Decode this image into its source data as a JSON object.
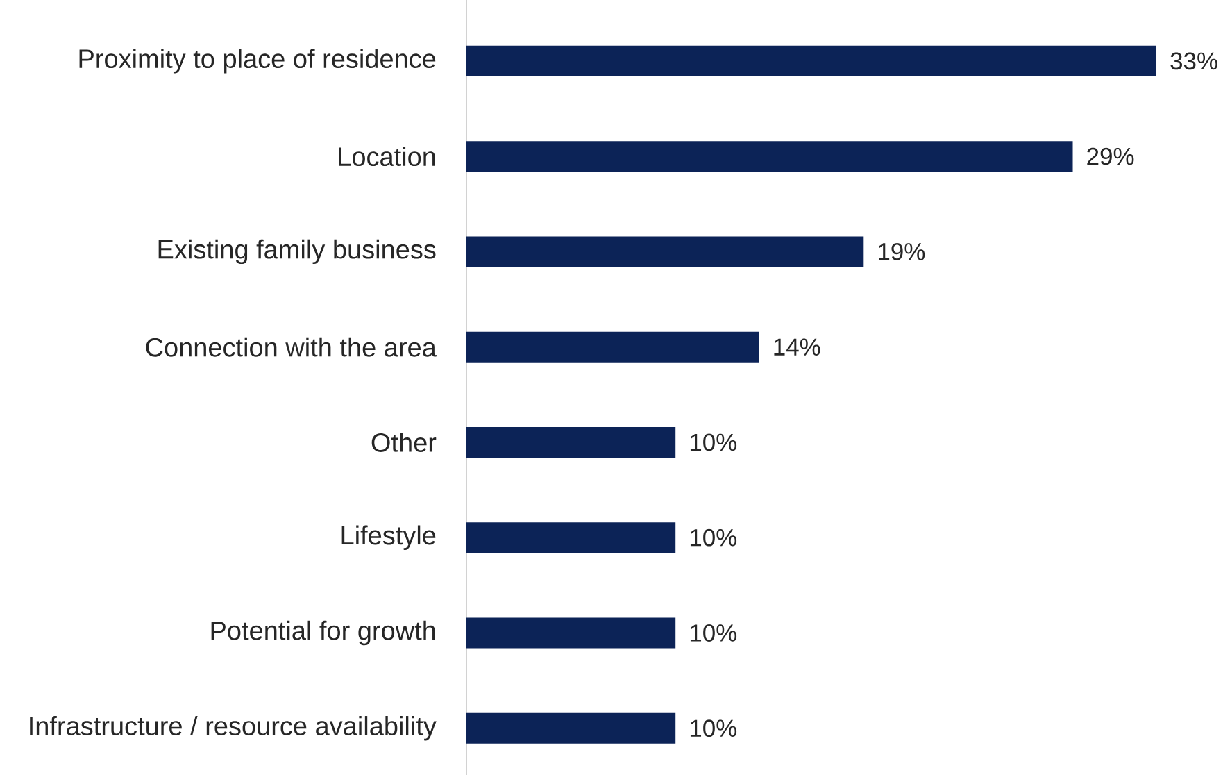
{
  "chart_data": {
    "type": "bar",
    "orientation": "horizontal",
    "categories": [
      "Proximity to place of residence",
      "Location",
      "Existing family business",
      "Connection with the area",
      "Other",
      "Lifestyle",
      "Potential for growth",
      "Infrastructure / resource availability"
    ],
    "values": [
      33,
      29,
      19,
      14,
      10,
      10,
      10,
      10
    ],
    "value_labels": [
      "33%",
      "29%",
      "19%",
      "14%",
      "10%",
      "10%",
      "10%",
      "10%"
    ],
    "color": "#0c2357"
  }
}
